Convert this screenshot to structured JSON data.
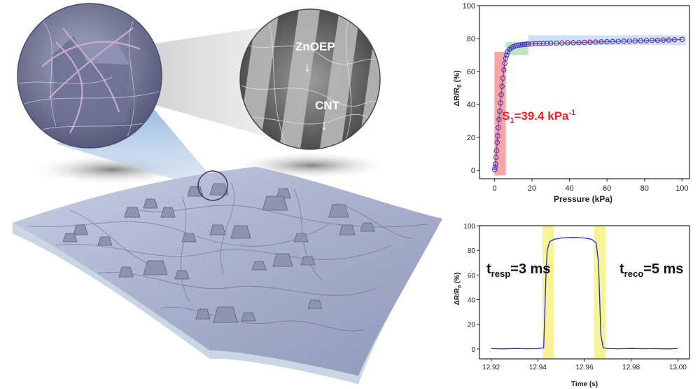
{
  "illustration": {
    "labels": [
      "ZnOEP",
      "CNT"
    ]
  },
  "chart_data": [
    {
      "type": "line",
      "xlabel": "Pressure (kPa)",
      "ylabel_main": "ΔR/R",
      "ylabel_sub": "0",
      "ylabel_unit": " (%)",
      "xlim": [
        -8,
        104
      ],
      "ylim": [
        -5,
        100
      ],
      "xticks": [
        "0",
        "20",
        "40",
        "60",
        "80",
        "100"
      ],
      "xtick_values": [
        0,
        20,
        40,
        60,
        80,
        100
      ],
      "yticks": [
        "0",
        "20",
        "40",
        "60",
        "80",
        "100"
      ],
      "ytick_values": [
        0,
        20,
        40,
        60,
        80,
        100
      ],
      "annotation": {
        "main": "S",
        "sub": "1",
        "rest": "=39.4 kPa",
        "sup": "-1",
        "color": "#ee2222"
      },
      "series": [
        {
          "x": [
            0.1,
            0.3,
            0.5,
            0.8,
            1.1,
            1.4,
            1.7,
            2.0,
            2.4,
            2.8,
            3.2,
            3.6,
            4.0,
            4.5,
            5.0,
            5.5,
            6.0,
            6.5,
            7.0,
            8.0,
            9.0,
            10,
            11,
            12,
            13,
            14,
            15,
            16,
            17,
            18,
            20,
            22,
            24,
            26,
            28,
            30,
            33,
            36,
            39,
            42,
            45,
            48,
            51,
            54,
            57,
            60,
            63,
            66,
            69,
            72,
            75,
            78,
            81,
            84,
            87,
            90,
            93,
            96,
            100
          ],
          "y": [
            0.5,
            2,
            4,
            8,
            12,
            17,
            21,
            26,
            31,
            36,
            41,
            46,
            51,
            56,
            61,
            65,
            68,
            70,
            72,
            73.5,
            74.5,
            75,
            75.5,
            75.8,
            76,
            76.2,
            76.4,
            76.5,
            76.6,
            76.7,
            76.8,
            76.9,
            77,
            77,
            77.1,
            77.2,
            77.2,
            77.3,
            77.4,
            77.5,
            77.6,
            77.7,
            77.8,
            77.9,
            78,
            78.1,
            78.2,
            78.3,
            78.4,
            78.5,
            78.6,
            78.7,
            78.8,
            78.9,
            79,
            79.1,
            79.2,
            79.3,
            79.5
          ],
          "color": "#3a3ad8"
        }
      ],
      "highlights": [
        {
          "type": "band",
          "x": [
            0,
            6
          ],
          "y": [
            -3,
            72
          ],
          "color": "#f05a5a"
        },
        {
          "type": "band",
          "x": [
            6,
            18
          ],
          "y": [
            70,
            78
          ],
          "color": "#8fd08f"
        },
        {
          "type": "band",
          "x": [
            18,
            102
          ],
          "y": [
            76,
            82
          ],
          "color": "#a9c6ef"
        }
      ]
    },
    {
      "type": "line",
      "xlabel": "Time (s)",
      "ylabel_main": "ΔR/R",
      "ylabel_sub": "0",
      "ylabel_unit": " (%)",
      "xlim": [
        12.915,
        13.005
      ],
      "ylim": [
        -8,
        100
      ],
      "xticks": [
        "12.92",
        "12.94",
        "12.96",
        "12.98",
        "13.00"
      ],
      "xtick_values": [
        12.92,
        12.94,
        12.96,
        12.98,
        13.0
      ],
      "yticks": [
        "0",
        "20",
        "40",
        "60",
        "80",
        "100"
      ],
      "ytick_values": [
        0,
        20,
        40,
        60,
        80,
        100
      ],
      "annotations": [
        {
          "main": "t",
          "sub": "resp",
          "rest": "=3 ms"
        },
        {
          "main": "t",
          "sub": "reco",
          "rest": "=5 ms"
        }
      ],
      "highlight_bands": [
        [
          12.942,
          12.947
        ],
        [
          12.964,
          12.969
        ]
      ],
      "series": [
        {
          "x": [
            12.92,
            12.925,
            12.93,
            12.935,
            12.94,
            12.9425,
            12.943,
            12.9435,
            12.944,
            12.945,
            12.947,
            12.95,
            12.955,
            12.96,
            12.963,
            12.965,
            12.966,
            12.9665,
            12.967,
            12.968,
            12.97,
            12.975,
            12.98,
            12.985,
            12.99,
            12.995,
            13.0
          ],
          "y": [
            0.3,
            0.1,
            0.4,
            0.2,
            0.3,
            1,
            30,
            60,
            80,
            87,
            89,
            90,
            90.5,
            90,
            89,
            86,
            70,
            40,
            12,
            1,
            0.3,
            0.2,
            0.4,
            0.2,
            0.3,
            0.1,
            0.3
          ],
          "color": "#2424e0"
        }
      ]
    }
  ]
}
